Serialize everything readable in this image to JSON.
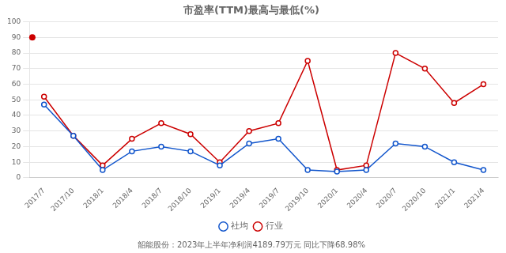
{
  "chart_data": {
    "type": "line",
    "title": "市盈率(TTM)最高与最低(%)",
    "categories": [
      "2017/7",
      "2017/10",
      "2018/1",
      "2018/4",
      "2018/7",
      "2018/10",
      "2019/1",
      "2019/4",
      "2019/7",
      "2019/10",
      "2020/1",
      "2020/4",
      "2020/7",
      "2020/10",
      "2021/1",
      "2021/4"
    ],
    "series": [
      {
        "name": "社均",
        "color": "#1155cc",
        "marker": "circle",
        "values": [
          47,
          27,
          5,
          17,
          20,
          17,
          8,
          22,
          25,
          5,
          4,
          5,
          22,
          20,
          10,
          5
        ]
      },
      {
        "name": "行业",
        "color": "#cc0000",
        "marker": "circle",
        "values": [
          52,
          27,
          8,
          25,
          35,
          28,
          10,
          30,
          35,
          75,
          5,
          8,
          80,
          70,
          48,
          60
        ],
        "clipped_value": 90
      }
    ],
    "ylim": [
      0,
      100
    ],
    "yticks": [
      0,
      10,
      20,
      30,
      40,
      50,
      60,
      70,
      80,
      90,
      100
    ],
    "grid": true,
    "legend": "bottom",
    "footer": "韶能股份：2023年上半年净利润4189.79万元 同比下降68.98%"
  }
}
